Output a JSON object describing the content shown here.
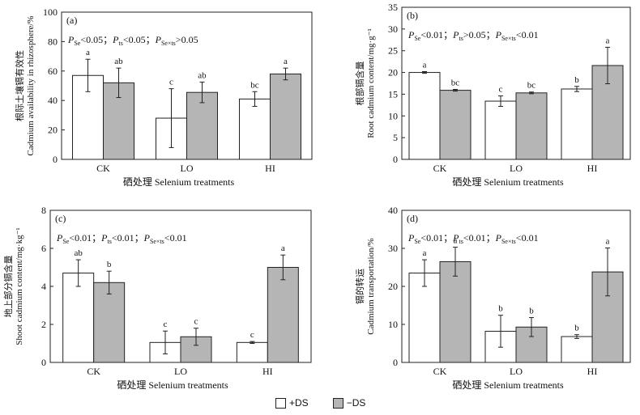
{
  "colors": {
    "plus_ds": "#ffffff",
    "minus_ds": "#b5b5b5",
    "ink": "#222222"
  },
  "legend": {
    "plus_label": "+DS",
    "minus_label": "−DS"
  },
  "chart_data": [
    {
      "type": "bar",
      "panel_label": "(a)",
      "stats": [
        {
          "name": "Se",
          "rel": "<",
          "val": "0.05"
        },
        {
          "name": "ts",
          "rel": "<",
          "val": "0.05"
        },
        {
          "name": "Se×ts",
          "rel": ">",
          "val": "0.05"
        }
      ],
      "ylabel_cn": "根际土壤镉有效性",
      "ylabel_en": "Cadmium availability in rhizosphere/%",
      "xlabel": "硒处理 Selenium treatments",
      "ylim": [
        0,
        100
      ],
      "yticks": [
        0,
        20,
        40,
        60,
        80,
        100
      ],
      "categories": [
        "CK",
        "LO",
        "HI"
      ],
      "series": [
        {
          "name": "+DS",
          "values": [
            57,
            28,
            41
          ],
          "errors": [
            11,
            20,
            5
          ],
          "letters": [
            "a",
            "c",
            "bc"
          ]
        },
        {
          "name": "−DS",
          "values": [
            52,
            45.5,
            58
          ],
          "errors": [
            10,
            7,
            4
          ],
          "letters": [
            "ab",
            "ab",
            "a"
          ]
        }
      ]
    },
    {
      "type": "bar",
      "panel_label": "(b)",
      "stats": [
        {
          "name": "Se",
          "rel": "<",
          "val": "0.01"
        },
        {
          "name": "ts",
          "rel": ">",
          "val": "0.05"
        },
        {
          "name": "Se×ts",
          "rel": "<",
          "val": "0.01"
        }
      ],
      "ylabel_cn": "根部镉含量",
      "ylabel_en": "Root cadmium content/mg·g⁻¹",
      "xlabel": "硒处理 Selenium treatments",
      "ylim": [
        0,
        35
      ],
      "yticks": [
        0,
        5,
        10,
        15,
        20,
        25,
        30,
        35
      ],
      "categories": [
        "CK",
        "LO",
        "HI"
      ],
      "series": [
        {
          "name": "+DS",
          "values": [
            20,
            13.4,
            16.2
          ],
          "errors": [
            0.2,
            1.2,
            0.6
          ],
          "letters": [
            "a",
            "c",
            "b"
          ]
        },
        {
          "name": "−DS",
          "values": [
            15.9,
            15.3,
            21.6
          ],
          "errors": [
            0.2,
            0.2,
            4.2
          ],
          "letters": [
            "bc",
            "bc",
            "a"
          ]
        }
      ]
    },
    {
      "type": "bar",
      "panel_label": "(c)",
      "stats": [
        {
          "name": "Se",
          "rel": "<",
          "val": "0.01"
        },
        {
          "name": "ts",
          "rel": "<",
          "val": "0.01"
        },
        {
          "name": "Se×ts",
          "rel": "<",
          "val": "0.01"
        }
      ],
      "ylabel_cn": "地上部分镉含量",
      "ylabel_en": "Shoot cadmium content/mg·kg⁻¹",
      "xlabel": "硒处理 Selenium treatments",
      "ylim": [
        0,
        8
      ],
      "yticks": [
        0,
        2,
        4,
        6,
        8
      ],
      "categories": [
        "CK",
        "LO",
        "HI"
      ],
      "series": [
        {
          "name": "+DS",
          "values": [
            4.7,
            1.05,
            1.05
          ],
          "errors": [
            0.7,
            0.6,
            0.05
          ],
          "letters": [
            "ab",
            "c",
            "c"
          ]
        },
        {
          "name": "−DS",
          "values": [
            4.2,
            1.35,
            5.0
          ],
          "errors": [
            0.6,
            0.45,
            0.65
          ],
          "letters": [
            "b",
            "c",
            "a"
          ]
        }
      ]
    },
    {
      "type": "bar",
      "panel_label": "(d)",
      "stats": [
        {
          "name": "Se",
          "rel": "<",
          "val": "0.01"
        },
        {
          "name": "ts",
          "rel": "<",
          "val": "0.01"
        },
        {
          "name": "Se×ts",
          "rel": "<",
          "val": "0.01"
        }
      ],
      "ylabel_cn": "镉的转运",
      "ylabel_en": "Cadmium transportation/%",
      "xlabel": "硒处理 Selenium treatments",
      "ylim": [
        0,
        40
      ],
      "yticks": [
        0,
        10,
        20,
        30,
        40
      ],
      "categories": [
        "CK",
        "LO",
        "HI"
      ],
      "series": [
        {
          "name": "+DS",
          "values": [
            23.5,
            8.2,
            6.8
          ],
          "errors": [
            3.5,
            4.2,
            0.5
          ],
          "letters": [
            "a",
            "b",
            "b"
          ]
        },
        {
          "name": "−DS",
          "values": [
            26.5,
            9.3,
            23.8
          ],
          "errors": [
            3.8,
            2.5,
            6.3
          ],
          "letters": [
            "a",
            "b",
            "a"
          ]
        }
      ]
    }
  ]
}
